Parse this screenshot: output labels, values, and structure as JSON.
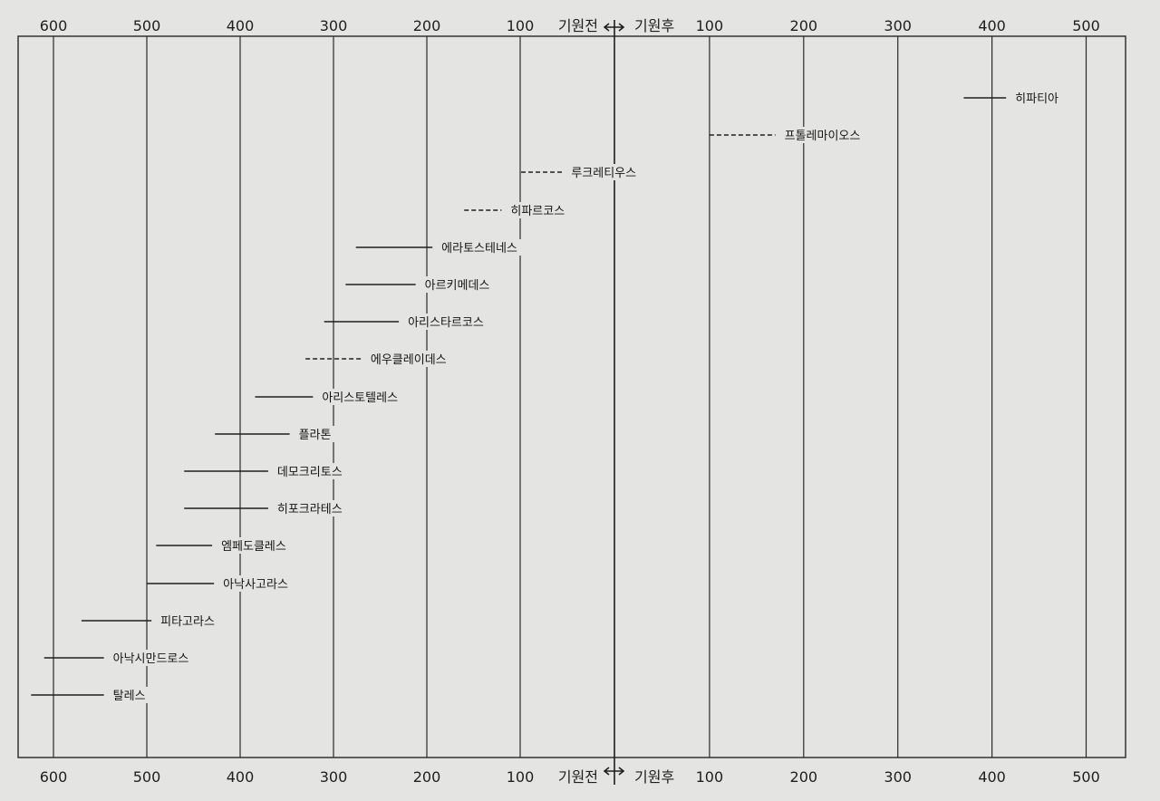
{
  "chart_data": {
    "type": "timeline",
    "title": "",
    "xlabel": "",
    "ylabel": "",
    "colors": {
      "background": "#e4e4e2",
      "ink": "#1e1e1e",
      "frame": "#333333"
    },
    "era_labels": {
      "bce": "기원전",
      "ce": "기원후"
    },
    "x_ticks": [
      {
        "year": -600,
        "label": "600"
      },
      {
        "year": -500,
        "label": "500"
      },
      {
        "year": -400,
        "label": "400"
      },
      {
        "year": -300,
        "label": "300"
      },
      {
        "year": -200,
        "label": "200"
      },
      {
        "year": -100,
        "label": "100"
      },
      {
        "year": 100,
        "label": "100"
      },
      {
        "year": 200,
        "label": "200"
      },
      {
        "year": 300,
        "label": "300"
      },
      {
        "year": 400,
        "label": "400"
      },
      {
        "year": 500,
        "label": "500"
      }
    ],
    "xlim": [
      -620,
      540
    ],
    "people": [
      {
        "name": "히파티아",
        "start": 370,
        "end": 415,
        "style": "solid"
      },
      {
        "name": "프톨레마이오스",
        "start": 100,
        "end": 170,
        "style": "dashed"
      },
      {
        "name": "루크레티우스",
        "start": -99,
        "end": -55,
        "style": "dashed"
      },
      {
        "name": "히파르코스",
        "start": -160,
        "end": -120,
        "style": "dashed"
      },
      {
        "name": "에라토스테네스",
        "start": -276,
        "end": -194,
        "style": "solid"
      },
      {
        "name": "아르키메데스",
        "start": -287,
        "end": -212,
        "style": "solid"
      },
      {
        "name": "아리스타르코스",
        "start": -310,
        "end": -230,
        "style": "solid"
      },
      {
        "name": "에우클레이데스",
        "start": -330,
        "end": -270,
        "style": "dashed"
      },
      {
        "name": "아리스토텔레스",
        "start": -384,
        "end": -322,
        "style": "solid"
      },
      {
        "name": "플라톤",
        "start": -427,
        "end": -347,
        "style": "solid"
      },
      {
        "name": "데모크리토스",
        "start": -460,
        "end": -370,
        "style": "solid"
      },
      {
        "name": "히포크라테스",
        "start": -460,
        "end": -370,
        "style": "solid"
      },
      {
        "name": "엠페도클레스",
        "start": -490,
        "end": -430,
        "style": "solid"
      },
      {
        "name": "아낙사고라스",
        "start": -500,
        "end": -428,
        "style": "solid"
      },
      {
        "name": "피타고라스",
        "start": -570,
        "end": -495,
        "style": "solid"
      },
      {
        "name": "아낙시만드로스",
        "start": -610,
        "end": -546,
        "style": "solid"
      },
      {
        "name": "탈레스",
        "start": -624,
        "end": -546,
        "style": "solid"
      }
    ]
  }
}
